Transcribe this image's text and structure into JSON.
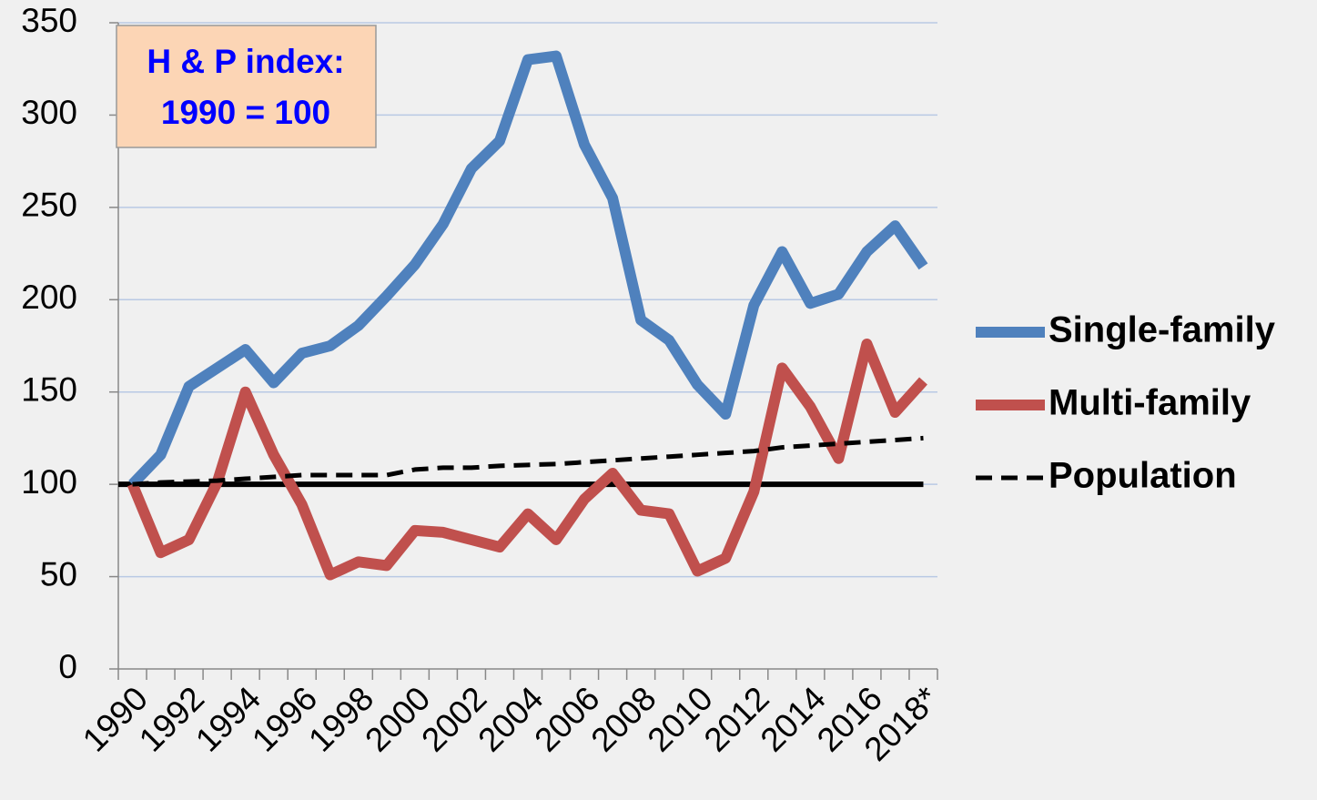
{
  "chart_data": {
    "type": "line",
    "annotation": [
      "H & P index:",
      "1990 = 100"
    ],
    "categories": [
      "1990",
      null,
      "1992",
      null,
      "1994",
      null,
      "1996",
      null,
      "1998",
      null,
      "2000",
      null,
      "2002",
      null,
      "2004",
      null,
      "2006",
      null,
      "2008",
      null,
      "2010",
      null,
      "2012",
      null,
      "2014",
      null,
      "2016",
      null,
      "2018*"
    ],
    "series": [
      {
        "name": "Single-family",
        "color": "#4f81bd",
        "style": "solid",
        "values": [
          100,
          116,
          153,
          163,
          173,
          155,
          171,
          175,
          186,
          202,
          219,
          241,
          271,
          286,
          330,
          332,
          284,
          255,
          189,
          178,
          154,
          138,
          197,
          226,
          198,
          203,
          226,
          240,
          218
        ]
      },
      {
        "name": "Multi-family",
        "color": "#c0504d",
        "style": "solid",
        "values": [
          100,
          63,
          70,
          101,
          150,
          116,
          89,
          51,
          58,
          56,
          75,
          74,
          70,
          66,
          84,
          70,
          92,
          106,
          86,
          84,
          53,
          60,
          96,
          163,
          142,
          114,
          176,
          139,
          156
        ]
      },
      {
        "name": "Population",
        "color": "#000000",
        "style": "dashed",
        "values": [
          100,
          101,
          101.5,
          102,
          103,
          104,
          105,
          105,
          105,
          105,
          108,
          109,
          109,
          110,
          110.5,
          111,
          112,
          113,
          114,
          115,
          116,
          117,
          118,
          120,
          121,
          122,
          123,
          124,
          125
        ]
      }
    ],
    "reference_line": 100,
    "ylim": [
      0,
      350
    ],
    "yticks": [
      0,
      50,
      100,
      150,
      200,
      250,
      300,
      350
    ],
    "grid": true
  }
}
